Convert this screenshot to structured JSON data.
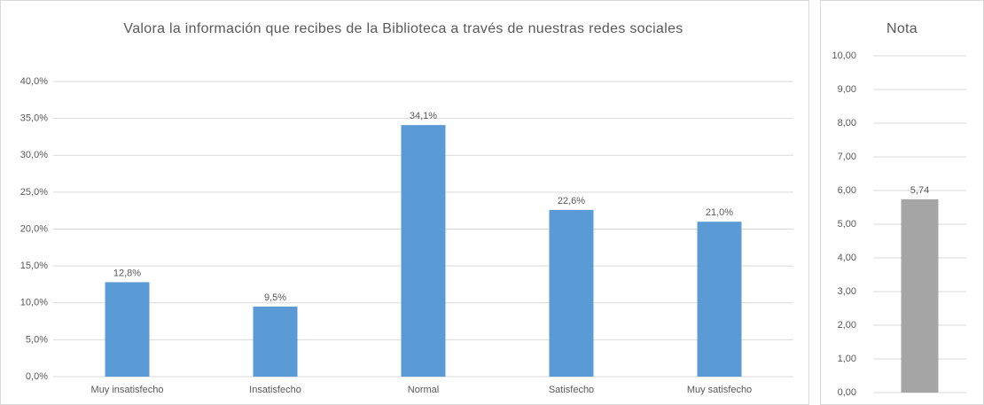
{
  "chart_data": [
    {
      "type": "bar",
      "title": "Valora la información que recibes de la Biblioteca a través de nuestras redes sociales",
      "categories": [
        "Muy insatisfecho",
        "Insatisfecho",
        "Normal",
        "Satisfecho",
        "Muy satisfecho"
      ],
      "values": [
        12.8,
        9.5,
        34.1,
        22.6,
        21.0
      ],
      "value_labels": [
        "12,8%",
        "9,5%",
        "34,1%",
        "22,6%",
        "21,0%"
      ],
      "color": "#5b9bd5",
      "ylim": [
        0,
        40
      ],
      "yticks": [
        {
          "value": 0,
          "label": "0,0%"
        },
        {
          "value": 5,
          "label": "5,0%"
        },
        {
          "value": 10,
          "label": "10,0%"
        },
        {
          "value": 15,
          "label": "15,0%"
        },
        {
          "value": 20,
          "label": "20,0%"
        },
        {
          "value": 25,
          "label": "25,0%"
        },
        {
          "value": 30,
          "label": "30,0%"
        },
        {
          "value": 35,
          "label": "35,0%"
        },
        {
          "value": 40,
          "label": "40,0%"
        }
      ],
      "grid": true
    },
    {
      "type": "bar",
      "title": "Nota",
      "categories": [
        null
      ],
      "values": [
        5.74
      ],
      "value_labels": [
        "5,74"
      ],
      "color": "#a5a5a5",
      "ylim": [
        0,
        10
      ],
      "yticks": [
        {
          "value": 0,
          "label": "0,00"
        },
        {
          "value": 1,
          "label": "1,00"
        },
        {
          "value": 2,
          "label": "2,00"
        },
        {
          "value": 3,
          "label": "3,00"
        },
        {
          "value": 4,
          "label": "4,00"
        },
        {
          "value": 5,
          "label": "5,00"
        },
        {
          "value": 6,
          "label": "6,00"
        },
        {
          "value": 7,
          "label": "7,00"
        },
        {
          "value": 8,
          "label": "8,00"
        },
        {
          "value": 9,
          "label": "9,00"
        },
        {
          "value": 10,
          "label": "10,00"
        }
      ],
      "grid": true
    }
  ]
}
